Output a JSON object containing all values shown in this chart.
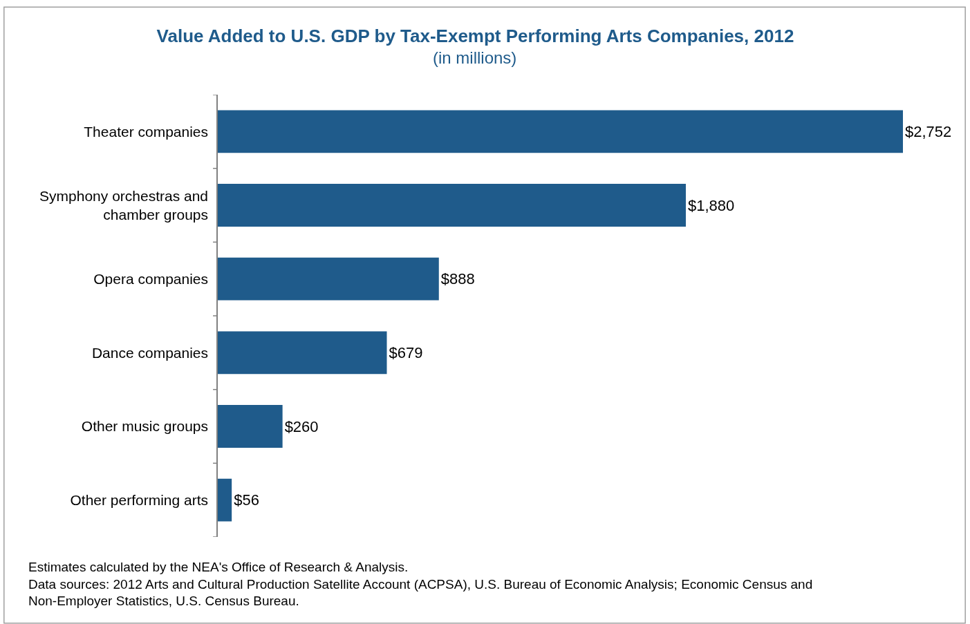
{
  "chart_data": {
    "type": "bar",
    "orientation": "horizontal",
    "title": "Value Added to U.S. GDP by Tax-Exempt Performing Arts Companies, 2012",
    "subtitle": "(in millions)",
    "categories": [
      "Theater companies",
      "Symphony orchestras and chamber groups",
      "Opera companies",
      "Dance companies",
      "Other music groups",
      "Other performing arts"
    ],
    "values": [
      2752,
      1880,
      888,
      679,
      260,
      56
    ],
    "value_labels": [
      "$2,752",
      "$1,880",
      "$888",
      "$679",
      "$260",
      "$56"
    ],
    "color": "#1f5b8b",
    "tick_labels": "y",
    "annotations": [
      "Estimates calculated by the NEA's Office of Research & Analysis.",
      "Data sources: 2012 Arts and Cultural Production Satellite Account (ACPSA), U.S. Bureau of Economic Analysis; Economic Census and Non-Employer Statistics, U.S. Census Bureau."
    ]
  }
}
